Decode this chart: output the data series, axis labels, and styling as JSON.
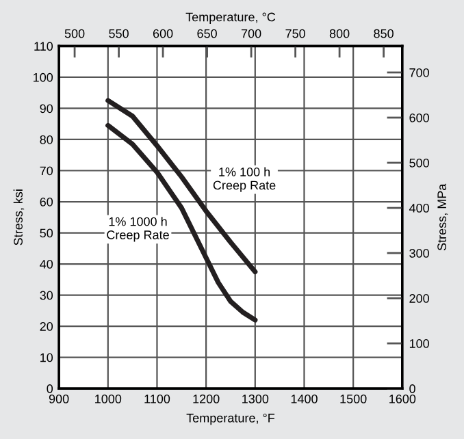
{
  "chart_data": {
    "type": "line",
    "xlabel": "Temperature, °F",
    "ylabel": "Stress, ksi",
    "y2label": "Stress, MPa",
    "x2label": "Temperature, °C",
    "xlim": [
      900,
      1600
    ],
    "xticks": [
      900,
      1000,
      1100,
      1200,
      1300,
      1400,
      1500,
      1600
    ],
    "ylim": [
      0,
      110
    ],
    "yticks": [
      0,
      10,
      20,
      30,
      40,
      50,
      60,
      70,
      80,
      90,
      100,
      110
    ],
    "y2lim": [
      0,
      758.4
    ],
    "y2ticks": [
      0,
      100,
      200,
      300,
      400,
      500,
      600,
      700
    ],
    "x2lim": [
      482.2,
      871.1
    ],
    "x2ticks": [
      500,
      550,
      600,
      650,
      700,
      750,
      800,
      850
    ],
    "grid": true,
    "legend": false,
    "marker": "none",
    "line_style": "solid",
    "series": [
      {
        "color": "#231f20",
        "x": [
          1000,
          1050,
          1100,
          1150,
          1200,
          1250,
          1300
        ],
        "values": [
          92.5,
          87.5,
          78,
          68,
          57,
          47,
          37.5
        ]
      },
      {
        "color": "#231f20",
        "x": [
          1000,
          1050,
          1100,
          1150,
          1200,
          1225,
          1250,
          1275,
          1300
        ],
        "values": [
          84.5,
          78.5,
          69.5,
          58,
          42,
          34,
          28,
          24.5,
          22
        ]
      }
    ],
    "annotations": [
      "1% 100 h\nCreep Rate",
      "1% 1000 h\nCreep Rate"
    ]
  }
}
